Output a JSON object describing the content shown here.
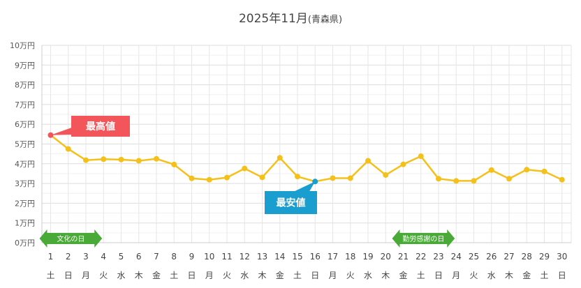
{
  "chart_data": {
    "type": "line",
    "title": "2025年11月",
    "title_suffix": "(青森県)",
    "ylim": [
      0,
      100000
    ],
    "yticks": [
      {
        "value": 0,
        "label": "0万円"
      },
      {
        "value": 10000,
        "label": "1万円"
      },
      {
        "value": 20000,
        "label": "2万円"
      },
      {
        "value": 30000,
        "label": "3万円"
      },
      {
        "value": 40000,
        "label": "4万円"
      },
      {
        "value": 50000,
        "label": "5万円"
      },
      {
        "value": 60000,
        "label": "6万円"
      },
      {
        "value": 70000,
        "label": "7万円"
      },
      {
        "value": 80000,
        "label": "8万円"
      },
      {
        "value": 90000,
        "label": "9万円"
      },
      {
        "value": 100000,
        "label": "10万円"
      }
    ],
    "x": [
      "1",
      "2",
      "3",
      "4",
      "5",
      "6",
      "7",
      "8",
      "9",
      "10",
      "11",
      "12",
      "13",
      "14",
      "15",
      "16",
      "17",
      "18",
      "19",
      "20",
      "21",
      "22",
      "23",
      "24",
      "25",
      "26",
      "27",
      "28",
      "29",
      "30"
    ],
    "weekdays": [
      "土",
      "日",
      "月",
      "火",
      "水",
      "木",
      "金",
      "土",
      "日",
      "月",
      "火",
      "水",
      "木",
      "金",
      "土",
      "日",
      "月",
      "火",
      "水",
      "木",
      "金",
      "土",
      "日",
      "月",
      "火",
      "水",
      "木",
      "金",
      "土",
      "日"
    ],
    "series": [
      {
        "values": [
          54500,
          47500,
          41800,
          42300,
          42100,
          41500,
          42500,
          39600,
          32600,
          31900,
          33000,
          37600,
          33100,
          43000,
          33500,
          31000,
          32700,
          32700,
          41500,
          34300,
          39700,
          43800,
          32400,
          31300,
          31300,
          36800,
          32400,
          37000,
          36100,
          31900
        ],
        "color": "#f5c01a"
      }
    ],
    "max_point": {
      "label": "最高値",
      "index": 0,
      "color": "#f2555a"
    },
    "min_point": {
      "label": "最安値",
      "index": 15,
      "color": "#1a9ecf"
    },
    "holidays": [
      {
        "label": "文化の日",
        "start_index": 0,
        "end_index": 3
      },
      {
        "label": "勤労感謝の日",
        "start_index": 20,
        "end_index": 23
      }
    ],
    "holiday_color": "#4aaa38",
    "grid": true
  }
}
